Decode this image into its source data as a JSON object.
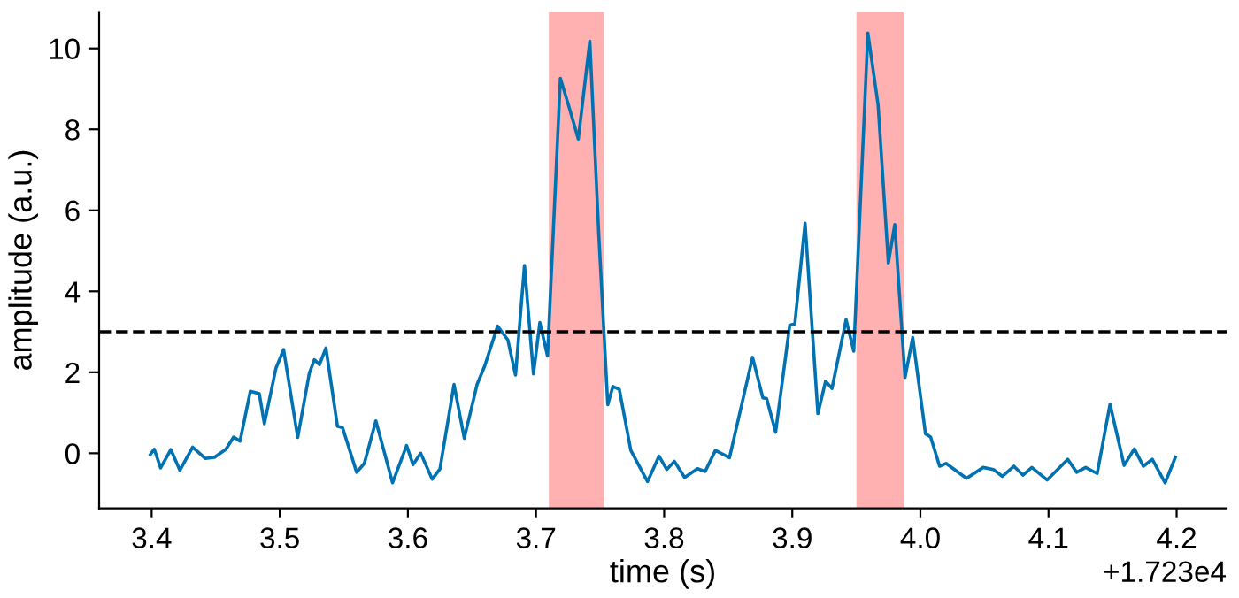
{
  "chart_data": {
    "type": "line",
    "xlabel": "time (s)",
    "ylabel": "amplitude (a.u.)",
    "annotations": [
      "+1.723e4"
    ],
    "xlim": [
      3.359,
      4.239
    ],
    "xticks": [
      3.4,
      3.5,
      3.6,
      3.7,
      3.8,
      3.9,
      {
        "value": 4.0,
        "label": "4.0"
      },
      4.1,
      4.2
    ],
    "ylim": [
      -1.36,
      10.9
    ],
    "yticks": [
      0,
      2,
      4,
      6,
      8,
      10
    ],
    "grid": false,
    "legend": false,
    "marker": "none",
    "line_style": "solid",
    "ref_lines": [
      {
        "axis": "y",
        "value": 3,
        "label": null,
        "color": "#000000",
        "line_style": "dashed"
      }
    ],
    "bands": [
      {
        "axis": "x",
        "from": 3.711,
        "to": 3.752,
        "label": null,
        "color": "#ffb1b1"
      },
      {
        "axis": "x",
        "from": 3.951,
        "to": 3.986,
        "label": null,
        "color": "#ffb1b1"
      }
    ],
    "series": [
      {
        "color": "#0072b2",
        "x": [
          3.399,
          3.402,
          3.407,
          3.415,
          3.422,
          3.432,
          3.442,
          3.449,
          3.458,
          3.464,
          3.469,
          3.477,
          3.484,
          3.488,
          3.497,
          3.503,
          3.514,
          3.523,
          3.527,
          3.531,
          3.536,
          3.545,
          3.549,
          3.56,
          3.566,
          3.575,
          3.588,
          3.599,
          3.604,
          3.61,
          3.619,
          3.625,
          3.636,
          3.644,
          3.654,
          3.66,
          3.67,
          3.678,
          3.684,
          3.691,
          3.698,
          3.703,
          3.709,
          3.719,
          3.726,
          3.733,
          3.742,
          3.749,
          3.756,
          3.76,
          3.765,
          3.774,
          3.787,
          3.796,
          3.802,
          3.808,
          3.816,
          3.826,
          3.832,
          3.84,
          3.851,
          3.869,
          3.877,
          3.88,
          3.887,
          3.898,
          3.902,
          3.91,
          3.92,
          3.926,
          3.931,
          3.942,
          3.948,
          3.959,
          3.967,
          3.975,
          3.98,
          3.988,
          3.994,
          4.004,
          4.008,
          4.015,
          4.02,
          4.036,
          4.049,
          4.057,
          4.064,
          4.073,
          4.08,
          4.087,
          4.099,
          4.115,
          4.122,
          4.129,
          4.138,
          4.148,
          4.159,
          4.167,
          4.174,
          4.181,
          4.191,
          4.199
        ],
        "values": [
          -0.03,
          0.1,
          -0.36,
          0.09,
          -0.42,
          0.15,
          -0.13,
          -0.1,
          0.1,
          0.4,
          0.3,
          1.53,
          1.47,
          0.73,
          2.1,
          2.56,
          0.39,
          1.97,
          2.31,
          2.19,
          2.6,
          0.67,
          0.63,
          -0.47,
          -0.25,
          0.8,
          -0.73,
          0.19,
          -0.28,
          0.0,
          -0.64,
          -0.39,
          1.7,
          0.37,
          1.7,
          2.16,
          3.14,
          2.8,
          1.93,
          4.64,
          1.96,
          3.23,
          2.4,
          9.26,
          8.53,
          7.76,
          10.18,
          5.4,
          1.2,
          1.65,
          1.58,
          0.07,
          -0.7,
          -0.07,
          -0.4,
          -0.2,
          -0.6,
          -0.38,
          -0.45,
          0.07,
          -0.11,
          2.37,
          1.37,
          1.35,
          0.52,
          3.16,
          3.2,
          5.68,
          0.98,
          1.78,
          1.6,
          3.3,
          2.52,
          10.38,
          8.6,
          4.7,
          5.65,
          1.87,
          2.86,
          0.48,
          0.4,
          -0.32,
          -0.25,
          -0.62,
          -0.35,
          -0.4,
          -0.57,
          -0.32,
          -0.54,
          -0.35,
          -0.66,
          -0.15,
          -0.47,
          -0.35,
          -0.5,
          1.21,
          -0.3,
          0.11,
          -0.32,
          -0.15,
          -0.73,
          -0.1
        ]
      }
    ]
  }
}
